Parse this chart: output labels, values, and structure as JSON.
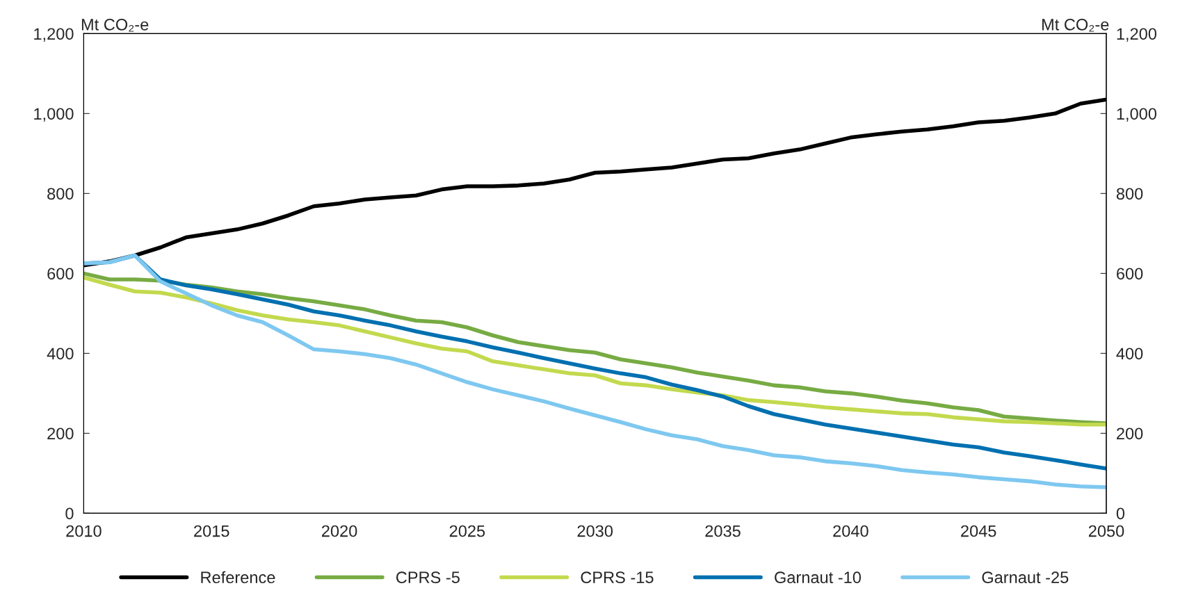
{
  "chart_data": {
    "type": "line",
    "ylabel": "Mt CO₂-e",
    "y2label": "Mt CO₂-e",
    "x": [
      2010,
      2011,
      2012,
      2013,
      2014,
      2015,
      2016,
      2017,
      2018,
      2019,
      2020,
      2021,
      2022,
      2023,
      2024,
      2025,
      2026,
      2027,
      2028,
      2029,
      2030,
      2031,
      2032,
      2033,
      2034,
      2035,
      2036,
      2037,
      2038,
      2039,
      2040,
      2041,
      2042,
      2043,
      2044,
      2045,
      2046,
      2047,
      2048,
      2049,
      2050
    ],
    "series": [
      {
        "name": "Reference",
        "color": "#000000",
        "values": [
          620,
          630,
          645,
          665,
          690,
          700,
          710,
          725,
          745,
          768,
          775,
          785,
          790,
          795,
          810,
          818,
          818,
          820,
          825,
          835,
          852,
          855,
          860,
          865,
          875,
          885,
          888,
          900,
          910,
          925,
          940,
          948,
          955,
          960,
          968,
          978,
          982,
          990,
          1000,
          1025,
          1035
        ]
      },
      {
        "name": "CPRS -5",
        "color": "#77ab43",
        "values": [
          600,
          585,
          585,
          582,
          572,
          565,
          555,
          548,
          538,
          530,
          520,
          510,
          495,
          482,
          478,
          465,
          445,
          428,
          418,
          408,
          402,
          385,
          375,
          365,
          352,
          342,
          332,
          320,
          315,
          305,
          300,
          292,
          282,
          275,
          265,
          258,
          242,
          237,
          232,
          228,
          225
        ]
      },
      {
        "name": "CPRS -15",
        "color": "#c3d94e",
        "values": [
          590,
          572,
          555,
          552,
          540,
          525,
          508,
          495,
          485,
          478,
          470,
          455,
          440,
          425,
          412,
          405,
          380,
          370,
          360,
          350,
          345,
          325,
          320,
          310,
          302,
          295,
          283,
          278,
          272,
          265,
          260,
          255,
          250,
          248,
          240,
          235,
          230,
          228,
          225,
          222,
          222
        ]
      },
      {
        "name": "Garnaut -10",
        "color": "#0070b0",
        "values": [
          625,
          628,
          645,
          585,
          570,
          560,
          548,
          535,
          522,
          505,
          495,
          482,
          470,
          455,
          442,
          430,
          415,
          402,
          388,
          375,
          362,
          350,
          340,
          322,
          308,
          292,
          268,
          248,
          235,
          222,
          212,
          202,
          192,
          182,
          172,
          165,
          152,
          143,
          133,
          122,
          112
        ]
      },
      {
        "name": "Garnaut -25",
        "color": "#7ec8f0",
        "values": [
          625,
          628,
          645,
          580,
          550,
          520,
          495,
          478,
          445,
          410,
          405,
          398,
          388,
          372,
          350,
          328,
          310,
          295,
          280,
          262,
          245,
          228,
          210,
          195,
          185,
          168,
          158,
          145,
          140,
          130,
          125,
          118,
          108,
          102,
          97,
          90,
          85,
          80,
          72,
          67,
          65
        ]
      }
    ],
    "xlim": [
      2010,
      2050
    ],
    "xticks": [
      2010,
      2015,
      2020,
      2025,
      2030,
      2035,
      2040,
      2045,
      2050
    ],
    "ylim": [
      0,
      1200
    ],
    "yticks": [
      0,
      200,
      400,
      600,
      800,
      {
        "value": 1000,
        "label": "1,000"
      },
      {
        "value": 1200,
        "label": "1,200"
      }
    ],
    "y2lim": [
      0,
      1200
    ],
    "y2ticks": [
      0,
      200,
      400,
      600,
      800,
      {
        "value": 1000,
        "label": "1,000"
      },
      {
        "value": 1200,
        "label": "1,200"
      }
    ],
    "legend": "bottom",
    "grid": false,
    "marker": "none",
    "line_style": "solid"
  }
}
